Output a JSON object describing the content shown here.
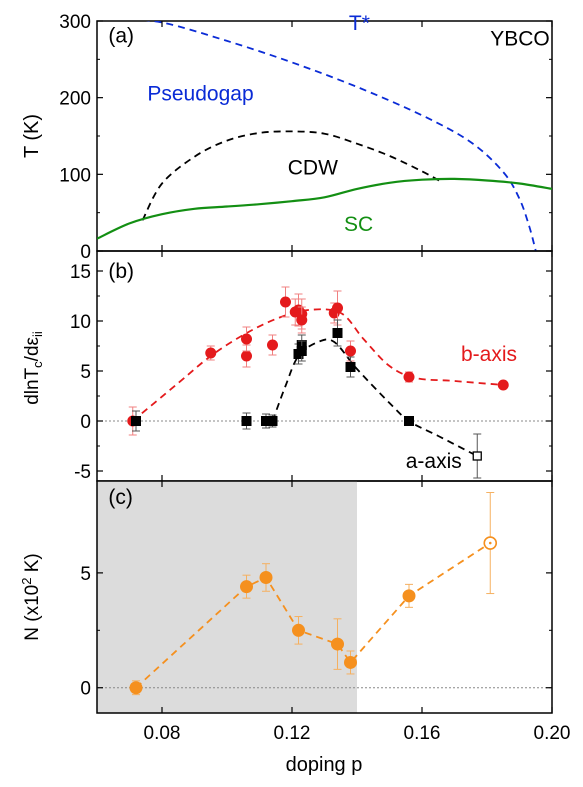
{
  "chart_data": [
    {
      "panel": "(a)",
      "type": "line",
      "title": "",
      "xlabel": "doping p",
      "ylabel": "T (K)",
      "xlim": [
        0.06,
        0.2
      ],
      "ylim": [
        0,
        300
      ],
      "yticks": [
        0,
        100,
        200,
        300
      ],
      "annotations": [
        {
          "text": "(a)",
          "x": 0.0635,
          "y": 272
        },
        {
          "text": "YBCO",
          "x": 0.181,
          "y": 268
        },
        {
          "text": "T*",
          "x": 0.1375,
          "y": 288
        },
        {
          "text": "Pseudogap",
          "x": 0.0755,
          "y": 196
        },
        {
          "text": "CDW",
          "x": 0.1187,
          "y": 100
        },
        {
          "text": "SC",
          "x": 0.136,
          "y": 26
        }
      ],
      "series": [
        {
          "label": "T*",
          "style": "dashed",
          "color": "#0a2bd6",
          "x": [
            0.063,
            0.08,
            0.1,
            0.12,
            0.14,
            0.16,
            0.175,
            0.185,
            0.19,
            0.193,
            0.195
          ],
          "y": [
            305,
            298,
            274,
            246,
            214,
            177,
            142,
            103,
            68,
            32,
            0
          ]
        },
        {
          "label": "CDW",
          "style": "dashed",
          "color": "#000000",
          "x": [
            0.074,
            0.08,
            0.09,
            0.1,
            0.11,
            0.12,
            0.13,
            0.14,
            0.15,
            0.16,
            0.166
          ],
          "y": [
            40,
            88,
            123,
            144,
            154,
            156,
            153,
            140,
            124,
            104,
            90
          ]
        },
        {
          "label": "SC",
          "style": "solid",
          "color": "#138f13",
          "x": [
            0.06,
            0.07,
            0.08,
            0.09,
            0.1,
            0.11,
            0.12,
            0.13,
            0.14,
            0.15,
            0.16,
            0.17,
            0.18,
            0.19,
            0.2
          ],
          "y": [
            16,
            36,
            48,
            55,
            58,
            61,
            65,
            70,
            81,
            89,
            93,
            94,
            92,
            88,
            81
          ]
        }
      ]
    },
    {
      "panel": "(b)",
      "type": "scatter",
      "xlabel": "doping p",
      "ylabel": "dlnTc/dεii",
      "ylabel_parts": {
        "main": "dlnT",
        "sub1": "c",
        "mid": "/dε",
        "sub2": "ii"
      },
      "xlim": [
        0.06,
        0.2
      ],
      "ylim": [
        -6,
        17
      ],
      "yticks": [
        -5,
        0,
        5,
        10,
        15
      ],
      "reference_line": 0,
      "annotations": [
        {
          "text": "(b)",
          "x": 0.0635,
          "y": 14.3
        },
        {
          "text": "b-axis",
          "x": 0.172,
          "y": 6.0
        },
        {
          "text": "a-axis",
          "x": 0.155,
          "y": -4.7
        }
      ],
      "series": [
        {
          "name": "b-axis",
          "marker": "circle",
          "color": "#e41a1c",
          "points": [
            {
              "x": 0.071,
              "y": 0.0,
              "err": 1.4
            },
            {
              "x": 0.095,
              "y": 6.8,
              "err": 0.7
            },
            {
              "x": 0.106,
              "y": 6.5,
              "err": 1.1
            },
            {
              "x": 0.106,
              "y": 8.2,
              "err": 1.2
            },
            {
              "x": 0.114,
              "y": 7.6,
              "err": 1.0
            },
            {
              "x": 0.118,
              "y": 11.9,
              "err": 1.5
            },
            {
              "x": 0.121,
              "y": 10.9,
              "err": 1.3
            },
            {
              "x": 0.122,
              "y": 11.1,
              "err": 1.6
            },
            {
              "x": 0.123,
              "y": 10.7,
              "err": 1.5
            },
            {
              "x": 0.123,
              "y": 10.1,
              "err": 1.3
            },
            {
              "x": 0.133,
              "y": 10.8,
              "err": 1.0
            },
            {
              "x": 0.134,
              "y": 11.3,
              "err": 1.7
            },
            {
              "x": 0.138,
              "y": 7.0,
              "err": 1.0
            },
            {
              "x": 0.156,
              "y": 4.4,
              "err": 0.5
            },
            {
              "x": 0.185,
              "y": 3.6,
              "err": 0.3
            }
          ],
          "trend": {
            "x": [
              0.071,
              0.085,
              0.095,
              0.105,
              0.115,
              0.125,
              0.135,
              0.142,
              0.15,
              0.158,
              0.17,
              0.185
            ],
            "y": [
              0.0,
              3.8,
              6.5,
              8.6,
              10.2,
              11.1,
              10.8,
              8.2,
              5.5,
              4.3,
              4.0,
              3.6
            ]
          }
        },
        {
          "name": "a-axis",
          "marker": "square",
          "color": "#000000",
          "points": [
            {
              "x": 0.072,
              "y": 0.0,
              "err": 1.0
            },
            {
              "x": 0.106,
              "y": 0.0,
              "err": 0.8
            },
            {
              "x": 0.112,
              "y": 0.0,
              "err": 0.7
            },
            {
              "x": 0.114,
              "y": 0.0,
              "err": 0.6
            },
            {
              "x": 0.122,
              "y": 6.7,
              "err": 1.0
            },
            {
              "x": 0.123,
              "y": 7.6,
              "err": 1.0
            },
            {
              "x": 0.123,
              "y": 7.0,
              "err": 1.0
            },
            {
              "x": 0.134,
              "y": 8.8,
              "err": 1.3
            },
            {
              "x": 0.138,
              "y": 5.4,
              "err": 1.0
            },
            {
              "x": 0.156,
              "y": 0.0,
              "err": 0.4
            },
            {
              "x": 0.177,
              "y": -3.5,
              "err": 2.2,
              "open": true
            }
          ],
          "trend": {
            "x": [
              0.114,
              0.118,
              0.122,
              0.128,
              0.133,
              0.14,
              0.15,
              0.156,
              0.165,
              0.177
            ],
            "y": [
              0.0,
              3.5,
              6.5,
              7.9,
              7.9,
              5.2,
              1.8,
              0.0,
              -1.5,
              -3.5
            ]
          }
        }
      ]
    },
    {
      "panel": "(c)",
      "type": "scatter",
      "xlabel": "doping p",
      "ylabel": "N (x10² K)",
      "ylabel_parts": {
        "main": "N (x10",
        "sup": "2",
        "end": " K)"
      },
      "xlim": [
        0.06,
        0.2
      ],
      "ylim": [
        -1.1,
        9.0
      ],
      "yticks": [
        0,
        5
      ],
      "xticks": [
        0.08,
        0.12,
        0.16,
        0.2
      ],
      "xtick_labels": [
        "0.08",
        "0.12",
        "0.16",
        "0.20"
      ],
      "shaded_region": {
        "x": [
          0.06,
          0.14
        ],
        "color": "#dcdcdc"
      },
      "reference_line": 0,
      "annotations": [
        {
          "text": "(c)",
          "x": 0.0635,
          "y": 8.0
        }
      ],
      "series": [
        {
          "name": "N",
          "marker": "circle",
          "color": "#f5901e",
          "points": [
            {
              "x": 0.072,
              "y": 0.0,
              "err": 0.3
            },
            {
              "x": 0.106,
              "y": 4.4,
              "err": 0.5
            },
            {
              "x": 0.112,
              "y": 4.8,
              "err": 0.6
            },
            {
              "x": 0.122,
              "y": 2.5,
              "err": 0.6
            },
            {
              "x": 0.134,
              "y": 1.9,
              "err": 1.1
            },
            {
              "x": 0.138,
              "y": 1.1,
              "err": 0.5
            },
            {
              "x": 0.156,
              "y": 4.0,
              "err": 0.5
            },
            {
              "x": 0.181,
              "y": 6.3,
              "err": 2.2,
              "open": true
            }
          ]
        }
      ]
    }
  ],
  "shared_x_tick_labels": [
    "0.08",
    "0.12",
    "0.16",
    "0.20"
  ],
  "colors": {
    "blue": "#0a2bd6",
    "green": "#138f13",
    "red": "#e41a1c",
    "orange": "#f5901e",
    "black": "#000000",
    "gray_band": "#dcdcdc"
  }
}
